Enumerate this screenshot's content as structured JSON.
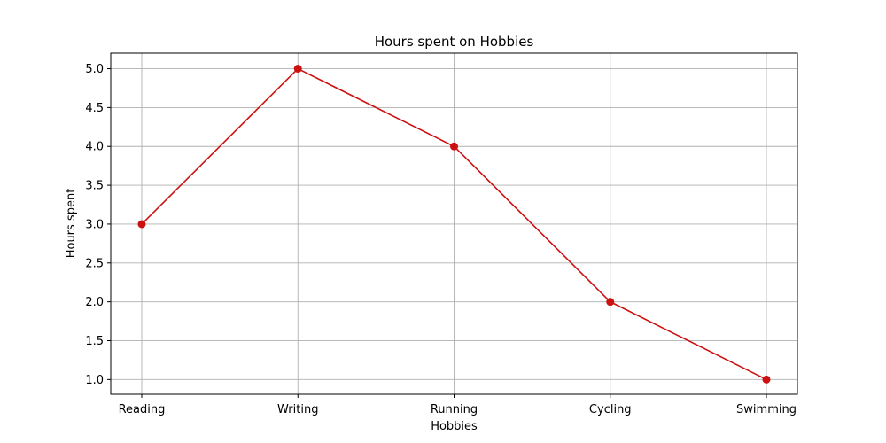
{
  "chart_data": {
    "type": "line",
    "title": "Hours spent on Hobbies",
    "xlabel": "Hobbies",
    "ylabel": "Hours spent",
    "categories": [
      "Reading",
      "Writing",
      "Running",
      "Cycling",
      "Swimming"
    ],
    "series": [
      {
        "values": [
          3,
          5,
          4,
          2,
          1
        ],
        "color": "#cc1111",
        "marker": "circle"
      }
    ],
    "yticks": [
      "1.0",
      "1.5",
      "2.0",
      "2.5",
      "3.0",
      "3.5",
      "4.0",
      "4.5",
      "5.0"
    ],
    "ylim": [
      0.81,
      5.2
    ],
    "grid": true,
    "legend": "none"
  }
}
